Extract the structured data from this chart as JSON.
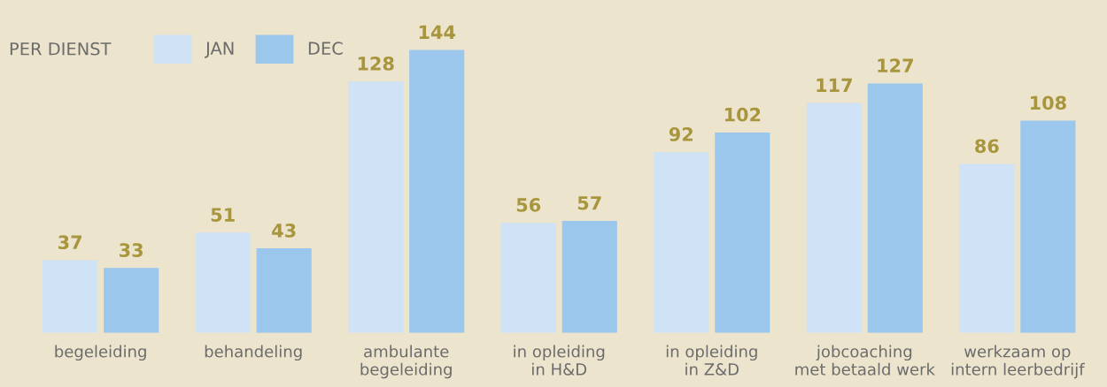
{
  "chart_data": {
    "type": "bar",
    "title": "PER DIENST",
    "categories": [
      "begeleiding",
      "behandeling",
      "ambulante\nbegeleiding",
      "in opleiding\nin H&D",
      "in opleiding\nin Z&D",
      "jobcoaching\nmet betaald werk",
      "werkzaam op\nintern leerbedrijf"
    ],
    "series": [
      {
        "name": "JAN",
        "color": "#d0e2f6",
        "values": [
          37,
          51,
          128,
          56,
          92,
          117,
          86
        ]
      },
      {
        "name": "DEC",
        "color": "#9cc7ec",
        "values": [
          33,
          43,
          144,
          57,
          102,
          127,
          108
        ]
      }
    ],
    "data_labels": true,
    "legend": "top left",
    "grid": false
  }
}
